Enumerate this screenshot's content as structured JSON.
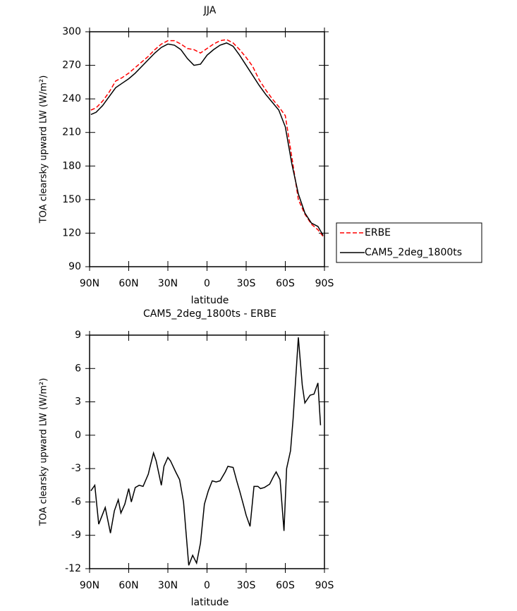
{
  "chart_data": [
    {
      "type": "line",
      "title": "JJA",
      "xlabel": "latitude",
      "ylabel": "TOA clearsky upward LW (W/m²)",
      "x": [
        89,
        85,
        80,
        75,
        70,
        65,
        60,
        55,
        50,
        45,
        40,
        35,
        30,
        25,
        20,
        15,
        10,
        5,
        0,
        -5,
        -10,
        -15,
        -20,
        -25,
        -30,
        -35,
        -40,
        -45,
        -50,
        -55,
        -60,
        -65,
        -70,
        -75,
        -80,
        -85,
        -89
      ],
      "series": [
        {
          "name": "ERBE",
          "color": "#ff0000",
          "dashed": true,
          "values": [
            230,
            232,
            238,
            246,
            256,
            259,
            263,
            268,
            273,
            278,
            284,
            289,
            292,
            292,
            289,
            285,
            284,
            281,
            285,
            289,
            292,
            293,
            290,
            284,
            277,
            269,
            257,
            248,
            240,
            233,
            225,
            188,
            150,
            137,
            128,
            123,
            117
          ]
        },
        {
          "name": "CAM5_2deg_1800ts",
          "color": "#000000",
          "dashed": false,
          "values": [
            226,
            228,
            234,
            242,
            250,
            254,
            258,
            263,
            269,
            275,
            281,
            286,
            289,
            288,
            284,
            276,
            270,
            271,
            279,
            284,
            288,
            290,
            287,
            279,
            270,
            261,
            252,
            244,
            237,
            230,
            215,
            182,
            155,
            138,
            129,
            126,
            118
          ]
        }
      ],
      "xlim": [
        90,
        -90
      ],
      "xticks": [
        {
          "value": 90,
          "label": "90N"
        },
        {
          "value": 60,
          "label": "60N"
        },
        {
          "value": 30,
          "label": "30N"
        },
        0,
        {
          "value": -30,
          "label": "30S"
        },
        {
          "value": -60,
          "label": "60S"
        },
        {
          "value": -90,
          "label": "90S"
        }
      ],
      "ylim": [
        90,
        300
      ],
      "yticks": [
        90,
        120,
        150,
        180,
        210,
        240,
        270,
        300
      ],
      "legend": "outside right"
    },
    {
      "type": "line",
      "title": "CAM5_2deg_1800ts - ERBE",
      "xlabel": "latitude",
      "ylabel": "TOA clearsky upward LW (W/m²)",
      "x": [
        89,
        86,
        83,
        78,
        74,
        71,
        68,
        66,
        63,
        60,
        58,
        55,
        52,
        49,
        45,
        44,
        41,
        39,
        35,
        33,
        30,
        28,
        24,
        21,
        18,
        14,
        11,
        8,
        5,
        2,
        -1,
        -4,
        -7,
        -10,
        -14,
        -16,
        -20,
        -23,
        -25,
        -28,
        -30,
        -33,
        -36,
        -39,
        -41,
        -44,
        -48,
        -51,
        -53,
        -56,
        -59,
        -61,
        -64,
        -66,
        -70,
        -73,
        -75,
        -79,
        -82,
        -85,
        -87
      ],
      "values": [
        -5.0,
        -4.5,
        -8.0,
        -6.5,
        -8.8,
        -6.8,
        -5.8,
        -7.0,
        -6.2,
        -4.8,
        -6.0,
        -4.7,
        -4.5,
        -4.6,
        -3.5,
        -3.0,
        -1.6,
        -2.3,
        -4.5,
        -2.8,
        -2.0,
        -2.3,
        -3.3,
        -4.0,
        -6.0,
        -11.7,
        -10.8,
        -11.5,
        -9.7,
        -6.2,
        -5.0,
        -4.1,
        -4.2,
        -4.1,
        -3.3,
        -2.8,
        -2.9,
        -4.2,
        -5.0,
        -6.3,
        -7.2,
        -8.2,
        -4.6,
        -4.6,
        -4.8,
        -4.7,
        -4.4,
        -3.7,
        -3.3,
        -4.0,
        -8.6,
        -3.0,
        -1.4,
        1.5,
        8.8,
        4.5,
        2.9,
        3.6,
        3.7,
        4.7,
        0.9
      ],
      "color": "#000000",
      "xlim": [
        90,
        -90
      ],
      "xticks": [
        {
          "value": 90,
          "label": "90N"
        },
        {
          "value": 60,
          "label": "60N"
        },
        {
          "value": 30,
          "label": "30N"
        },
        0,
        {
          "value": -30,
          "label": "30S"
        },
        {
          "value": -60,
          "label": "60S"
        },
        {
          "value": -90,
          "label": "90S"
        }
      ],
      "ylim": [
        -12,
        9
      ],
      "yticks": [
        -12,
        -9,
        -6,
        -3,
        0,
        3,
        6,
        9
      ]
    }
  ]
}
